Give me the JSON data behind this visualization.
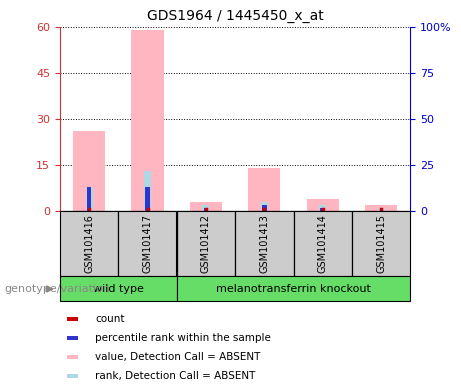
{
  "title": "GDS1964 / 1445450_x_at",
  "samples": [
    "GSM101416",
    "GSM101417",
    "GSM101412",
    "GSM101413",
    "GSM101414",
    "GSM101415"
  ],
  "wild_type_count": 2,
  "pink_bars": [
    26,
    59,
    3,
    14,
    4,
    2
  ],
  "blue_bars": [
    8,
    8,
    1,
    2,
    1,
    0
  ],
  "lightblue_bars": [
    8,
    13,
    2,
    3,
    2,
    1
  ],
  "ylim_left": [
    0,
    60
  ],
  "ylim_right": [
    0,
    100
  ],
  "yticks_left": [
    0,
    15,
    30,
    45,
    60
  ],
  "yticks_right": [
    0,
    25,
    50,
    75,
    100
  ],
  "yticklabels_left": [
    "0",
    "15",
    "30",
    "45",
    "60"
  ],
  "yticklabels_right": [
    "0",
    "25",
    "50",
    "75",
    "100%"
  ],
  "left_color": "#cc3333",
  "right_color": "#0000cc",
  "pink_color": "#FFB6C1",
  "lightblue_color": "#ADD8E6",
  "blue_color": "#3333cc",
  "red_color": "#cc0000",
  "green_color": "#66dd66",
  "gray_color": "#cccccc",
  "legend_items": [
    {
      "label": "count",
      "color": "#cc0000"
    },
    {
      "label": "percentile rank within the sample",
      "color": "#3333cc"
    },
    {
      "label": "value, Detection Call = ABSENT",
      "color": "#FFB6C1"
    },
    {
      "label": "rank, Detection Call = ABSENT",
      "color": "#ADD8E6"
    }
  ],
  "group_label": "genotype/variation",
  "wt_label": "wild type",
  "ko_label": "melanotransferrin knockout"
}
